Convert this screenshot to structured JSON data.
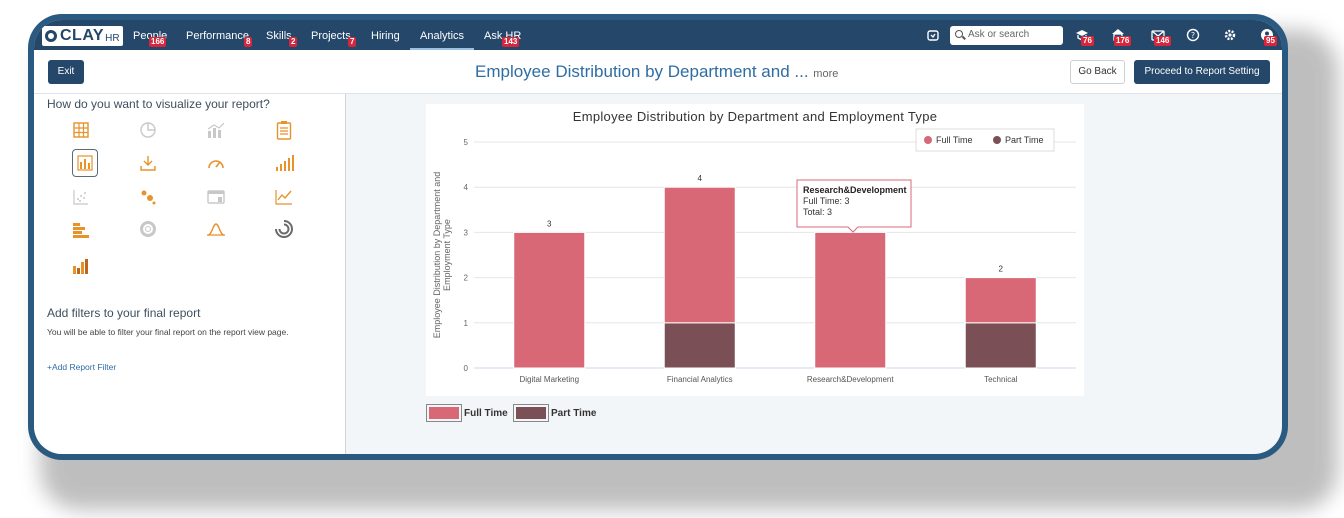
{
  "app": {
    "logo_text": "CLAY",
    "logo_suffix": "HR"
  },
  "nav": {
    "items": [
      {
        "label": "People",
        "badge": "166"
      },
      {
        "label": "Performance",
        "badge": "8"
      },
      {
        "label": "Skills",
        "badge": "2"
      },
      {
        "label": "Projects",
        "badge": "7"
      },
      {
        "label": "Hiring",
        "badge": ""
      },
      {
        "label": "Analytics",
        "badge": ""
      },
      {
        "label": "Ask HR",
        "badge": "143"
      }
    ],
    "search_placeholder": "Ask or search",
    "icon_badges": {
      "tasks": "76",
      "announcements": "176",
      "mail": "146",
      "profile": "95"
    }
  },
  "header": {
    "exit_label": "Exit",
    "title": "Employee Distribution by Department and ...",
    "more_label": "more",
    "go_back_label": "Go Back",
    "proceed_label": "Proceed to Report Setting"
  },
  "left_panel": {
    "visualize_heading": "How do you want to visualize your report?",
    "filters_heading": "Add filters to your final report",
    "filters_hint": "You will be able to filter your final report on the report view page.",
    "add_filter_label": "+Add Report Filter"
  },
  "colors": {
    "accent": "#24476a",
    "full_time": "#d96877",
    "part_time": "#7a4f55",
    "icon_orange": "#e8922a"
  },
  "tooltip": {
    "title": "Research&Development",
    "line1": "Full Time: 3",
    "line2": "Total: 3"
  },
  "chart_data": {
    "type": "bar",
    "stacked": true,
    "title": "Employee Distribution by Department and Employment Type",
    "ylabel": "Employee Distribution by Department and Employment Type",
    "xlabel": "",
    "ylim": [
      0,
      5
    ],
    "yticks": [
      0,
      1,
      2,
      3,
      4,
      5
    ],
    "categories": [
      "Digital Marketing",
      "Financial Analytics",
      "Research&Development",
      "Technical"
    ],
    "series": [
      {
        "name": "Part Time",
        "values": [
          0,
          1,
          0,
          1
        ]
      },
      {
        "name": "Full Time",
        "values": [
          3,
          3,
          3,
          1
        ]
      }
    ],
    "totals": [
      "3",
      "4",
      "",
      "2"
    ],
    "legend": [
      "Full Time",
      "Part Time"
    ],
    "legend_position": "top-right"
  },
  "bottom_legend": {
    "full_time_label": "Full Time",
    "part_time_label": "Part Time"
  }
}
